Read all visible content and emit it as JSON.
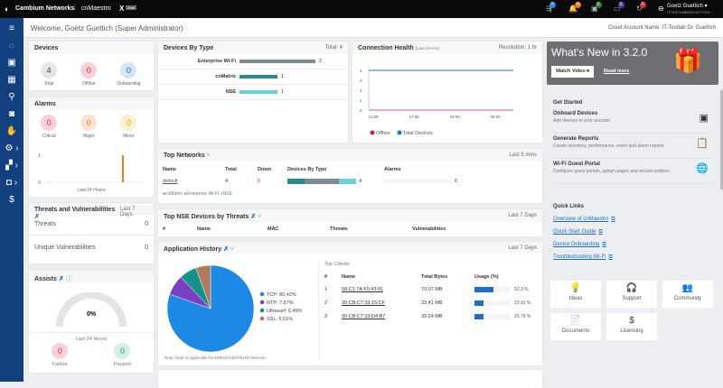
{
  "topbar": {
    "brand": "Cambium Networks",
    "product": "cnMaestro",
    "edition": "X",
    "trial": "Trial",
    "user_name": "Goetz Guettich ▾",
    "user_sub": "ITTESTLABDRGUETTICH",
    "notifications": [
      {
        "icon": "ap-icon",
        "count": "0",
        "color": "#1e88e5"
      },
      {
        "icon": "bell-icon",
        "count": "0",
        "color": "#f57c00"
      },
      {
        "icon": "device-icon",
        "count": "0",
        "color": "#2e7d32"
      },
      {
        "icon": "monitor-icon",
        "count": "0",
        "color": "#5e35b1"
      },
      {
        "icon": "refresh-icon",
        "count": "0",
        "color": "#d32f2f"
      }
    ]
  },
  "header": {
    "welcome": "Welcome, Goetz Guettich  (Super Administrator)",
    "account": "Cloud Account Name: IT-Testlab Dr. Guettich"
  },
  "sidebar": [
    "menu-icon",
    "home-icon",
    "monitor-icon",
    "grid-icon",
    "location-icon",
    "wireless-icon",
    "hand-icon",
    "gear-icon",
    "apps-icon",
    "camera-icon",
    "dollar-icon"
  ],
  "devices": {
    "title": "Devices",
    "stats": [
      {
        "value": "4",
        "label": "Total",
        "color": "#e6e6e6",
        "text": "#444"
      },
      {
        "value": "0",
        "label": "Offline",
        "color": "#fbd0d6",
        "text": "#d33"
      },
      {
        "value": "0",
        "label": "Onboarding",
        "color": "#d3e7f9",
        "text": "#1b6fc4"
      }
    ]
  },
  "alarms": {
    "title": "Alarms",
    "stats": [
      {
        "value": "0",
        "label": "Critical",
        "color": "#fbd0d6",
        "text": "#d33"
      },
      {
        "value": "0",
        "label": "Major",
        "color": "#fde1d2",
        "text": "#e67e22"
      },
      {
        "value": "0",
        "label": "Minor",
        "color": "#fbf0c8",
        "text": "#d4a017"
      }
    ],
    "y_ticks": [
      "1",
      "0"
    ],
    "xlabel": "Last 24 Hours",
    "spike_value": 1
  },
  "threats": {
    "title": "Threats and Vulnerabilities",
    "period": "Last 7 Days",
    "rows": [
      {
        "label": "Threats",
        "value": "0"
      },
      {
        "label": "Unique Vulnerabilities",
        "value": "0"
      }
    ]
  },
  "assists": {
    "title": "Assists",
    "gauge": "0%",
    "period": "Last 24 Hours",
    "stats": [
      {
        "value": "0",
        "label": "Failure",
        "color": "#fbd0d6",
        "text": "#d33"
      },
      {
        "value": "0",
        "label": "Paused",
        "color": "#d3efe6",
        "text": "#2a9d8f"
      }
    ]
  },
  "devices_by_type": {
    "title": "Devices By Type",
    "total": "Total: 4",
    "rows": [
      {
        "label": "Enterprise Wi-Fi",
        "value": 2,
        "color": "#7d8b93"
      },
      {
        "label": "cnMatrix",
        "value": 1,
        "color": "#2a8a8e"
      },
      {
        "label": "NSE",
        "value": 1,
        "color": "#6ccfd8"
      }
    ]
  },
  "connection_health": {
    "title": "Connection Health",
    "subtitle": "(Last 24 Hrs)",
    "resolution": "Resolution: 1 hr",
    "y_ticks": [
      "4",
      "3",
      "2",
      "1",
      "0"
    ],
    "x_ticks": [
      "11:00",
      "17:00",
      "23:00",
      "05:00"
    ],
    "legend": [
      {
        "label": "Offline",
        "color": "#d81b4a"
      },
      {
        "label": "Total Devices",
        "color": "#1e78c8"
      }
    ],
    "total_value": 4,
    "offline_value": 0
  },
  "top_networks": {
    "title": "Top Networks",
    "period": "Last 5 mins",
    "headers": [
      "Name",
      "Total",
      "Down",
      "Devices By Type",
      "Alarms"
    ],
    "row": {
      "name": "default",
      "total": "4",
      "down": "0",
      "devices": "4",
      "alarms": "0"
    },
    "legend": [
      "cnMatrix",
      "Enterprise Wi-Fi",
      "NSE"
    ]
  },
  "top_nse": {
    "title": "Top NSE Devices by Threats",
    "period": "Last 7 Days",
    "headers": [
      "#",
      "Name",
      "MAC",
      "Threats",
      "Vulnerabilities"
    ]
  },
  "app_history": {
    "title": "Application History",
    "period": "Last 7 Days",
    "note": "Note: Data is Applicable for NSE/XV/XD/XE/XR Devices.",
    "slices": [
      {
        "label": "TCP: 80.42%",
        "value": 80.42,
        "color": "#1e88e5"
      },
      {
        "label": "NTP: 7.57%",
        "value": 7.57,
        "color": "#7b3fc4"
      },
      {
        "label": "Ultrasurf: 6.49%",
        "value": 6.49,
        "color": "#14918a"
      },
      {
        "label": "SSL: 5.51%",
        "value": 5.51,
        "color": "#b07a5e"
      }
    ],
    "clients_title": "Top Clients",
    "client_headers": [
      "#",
      "Name",
      "Total Bytes",
      "Usage (%)"
    ],
    "clients": [
      {
        "n": "1",
        "name": "58:C1:7A:F0:43:01",
        "bytes": "73.07 MB",
        "usage": 52.3,
        "usage_label": "52.3 %"
      },
      {
        "n": "2",
        "name": "30:CB:C7:33:15:CF",
        "bytes": "33.41 MB",
        "usage": 23.91,
        "usage_label": "23.91 %"
      },
      {
        "n": "3",
        "name": "30:CB:C7:33:D4:B7",
        "bytes": "33.24 MB",
        "usage": 23.79,
        "usage_label": "23.79 %"
      }
    ]
  },
  "whats_new": {
    "title": "What's New in 3.2.0",
    "watch": "Watch Video",
    "read": "Read more"
  },
  "get_started": {
    "title": "Get Started",
    "items": [
      {
        "title": "Onboard Devices",
        "desc": "Add devices to your account",
        "icon": "onboard-icon"
      },
      {
        "title": "Generate Reports",
        "desc": "Create inventory, performance, event and alarm reports",
        "icon": "clipboard-icon"
      },
      {
        "title": "Wi-Fi Guest Portal",
        "desc": "Configure guest portals, splash pages and access policies",
        "icon": "globe-icon"
      }
    ]
  },
  "quick_links": {
    "title": "Quick Links",
    "items": [
      "Overview of cnMaestro",
      "Quick Start Guide",
      "Device Onboarding",
      "Troubleshooting Wi-Fi"
    ]
  },
  "tiles": [
    {
      "label": "Ideas",
      "icon": "lightbulb-icon",
      "glyph": "💡"
    },
    {
      "label": "Support",
      "icon": "headset-icon",
      "glyph": "🎧"
    },
    {
      "label": "Community",
      "icon": "community-icon",
      "glyph": "👥"
    },
    {
      "label": "Documents",
      "icon": "document-icon",
      "glyph": "📄"
    },
    {
      "label": "Licensing",
      "icon": "licensing-icon",
      "glyph": "$"
    }
  ]
}
